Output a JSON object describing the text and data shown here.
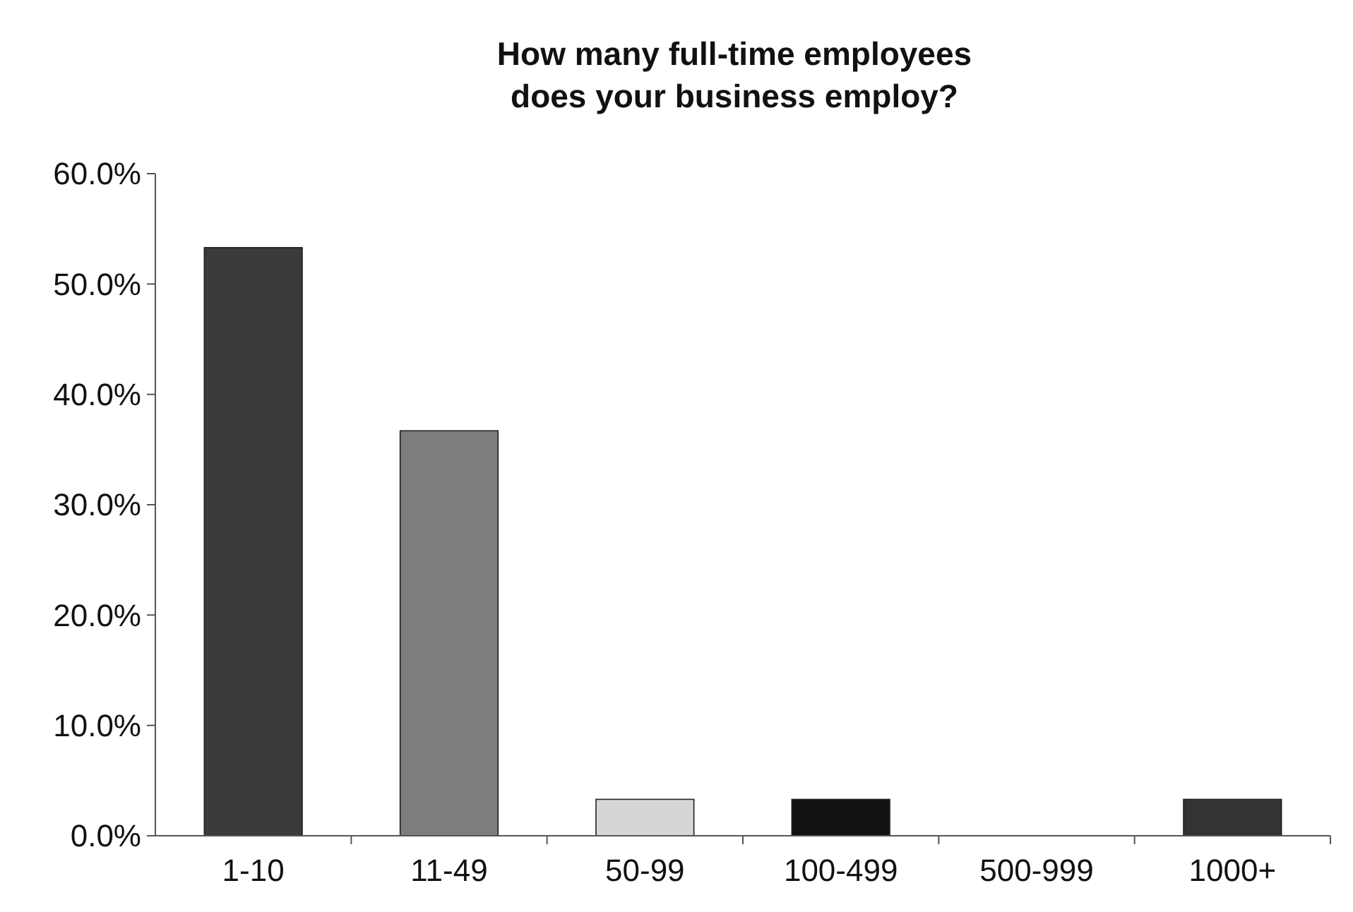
{
  "chart_data": {
    "type": "bar",
    "title": "How many full-time employees\ndoes your business employ?",
    "categories": [
      "1-10",
      "11-49",
      "50-99",
      "100-499",
      "500-999",
      "1000+"
    ],
    "values": [
      53.3,
      36.7,
      3.3,
      3.3,
      0,
      3.3
    ],
    "colors": [
      "#3a3a3a",
      "#7d7d7d",
      "#d6d6d6",
      "#111111",
      "#555555",
      "#333333"
    ],
    "ylim": [
      0,
      60
    ],
    "yticks": [
      {
        "value": 0,
        "label": "0.0%"
      },
      {
        "value": 10,
        "label": "10.0%"
      },
      {
        "value": 20,
        "label": "20.0%"
      },
      {
        "value": 30,
        "label": "30.0%"
      },
      {
        "value": 40,
        "label": "40.0%"
      },
      {
        "value": 50,
        "label": "50.0%"
      },
      {
        "value": 60,
        "label": "60.0%"
      }
    ],
    "grid": false
  }
}
